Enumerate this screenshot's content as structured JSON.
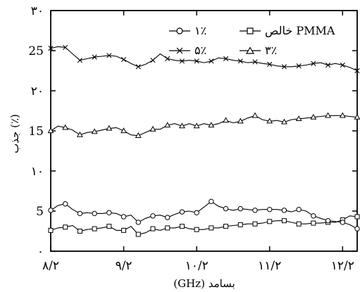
{
  "chart_data": {
    "type": "line",
    "xlabel": "بسامد (GHz)",
    "ylabel": "جذب (٪)",
    "x_ticks": [
      {
        "value": 8.2,
        "label": "۸/۲"
      },
      {
        "value": 9.2,
        "label": "۹/۲"
      },
      {
        "value": 10.2,
        "label": "۱۰/۲"
      },
      {
        "value": 11.2,
        "label": "۱۱/۲"
      },
      {
        "value": 12.2,
        "label": "۱۲/۲"
      }
    ],
    "y_ticks": [
      {
        "value": 0,
        "label": "۰"
      },
      {
        "value": 5,
        "label": "5"
      },
      {
        "value": 10,
        "label": "۱۰"
      },
      {
        "value": 15,
        "label": "15"
      },
      {
        "value": 20,
        "label": "۲۰"
      },
      {
        "value": 25,
        "label": "25"
      },
      {
        "value": 30,
        "label": "۳۰"
      }
    ],
    "xlim": [
      8.2,
      12.4
    ],
    "ylim": [
      0,
      30
    ],
    "grid": false,
    "legend_position": "top",
    "x": [
      8.2,
      8.3,
      8.4,
      8.5,
      8.6,
      8.7,
      8.8,
      8.9,
      9.0,
      9.1,
      9.2,
      9.3,
      9.4,
      9.5,
      9.6,
      9.7,
      9.8,
      9.9,
      10.0,
      10.1,
      10.2,
      10.3,
      10.4,
      10.5,
      10.6,
      10.7,
      10.8,
      10.9,
      11.0,
      11.1,
      11.2,
      11.3,
      11.4,
      11.5,
      11.6,
      11.7,
      11.8,
      11.9,
      12.0,
      12.1,
      12.2,
      12.3,
      12.4
    ],
    "series": [
      {
        "name": "خالص PMMA",
        "marker": "square",
        "values": [
          2.6,
          2.9,
          3.0,
          3.2,
          2.5,
          2.7,
          2.8,
          2.9,
          3.1,
          2.6,
          2.6,
          3.1,
          2.1,
          2.3,
          2.8,
          2.6,
          2.9,
          2.9,
          3.1,
          2.8,
          2.7,
          2.7,
          2.9,
          2.9,
          3.1,
          3.2,
          3.3,
          3.4,
          3.4,
          3.5,
          3.7,
          3.8,
          3.8,
          3.6,
          3.4,
          3.4,
          3.5,
          3.5,
          3.6,
          3.6,
          3.9,
          4.4,
          4.3
        ]
      },
      {
        "name": "۱٪",
        "marker": "circle",
        "values": [
          5.1,
          5.7,
          5.9,
          5.2,
          4.7,
          4.8,
          4.7,
          4.7,
          4.8,
          4.7,
          4.3,
          4.5,
          3.6,
          4.1,
          4.4,
          4.5,
          4.2,
          4.6,
          4.9,
          5.0,
          4.8,
          5.5,
          6.2,
          5.6,
          5.3,
          5.1,
          5.3,
          5.2,
          5.1,
          5.2,
          5.2,
          5.2,
          5.1,
          4.9,
          5.2,
          5.0,
          4.4,
          4.1,
          3.8,
          3.7,
          3.6,
          3.3,
          2.8
        ]
      },
      {
        "name": "۳٪",
        "marker": "triangle",
        "values": [
          15.0,
          15.6,
          15.4,
          15.1,
          14.5,
          14.8,
          14.9,
          15.1,
          15.3,
          15.4,
          15.0,
          14.5,
          14.4,
          14.8,
          15.2,
          15.2,
          15.7,
          15.9,
          15.6,
          15.9,
          15.6,
          15.9,
          15.7,
          15.9,
          16.3,
          16.0,
          16.2,
          16.6,
          16.9,
          16.4,
          16.2,
          16.3,
          16.1,
          16.4,
          16.5,
          16.6,
          16.7,
          16.8,
          16.9,
          16.9,
          16.9,
          16.8,
          16.7
        ]
      },
      {
        "name": "۵٪",
        "marker": "x",
        "values": [
          25.3,
          25.5,
          25.4,
          24.6,
          23.8,
          24.0,
          24.2,
          24.3,
          24.4,
          24.3,
          23.9,
          23.4,
          23.0,
          23.3,
          23.8,
          24.6,
          24.0,
          23.8,
          23.7,
          23.8,
          23.7,
          23.5,
          23.7,
          24.1,
          24.0,
          23.8,
          23.7,
          23.5,
          23.6,
          23.4,
          23.3,
          23.1,
          23.0,
          23.0,
          23.1,
          23.2,
          23.4,
          23.5,
          23.2,
          23.4,
          23.2,
          22.9,
          22.5
        ]
      }
    ]
  },
  "legend": {
    "row1": [
      "۱٪",
      "خالص PMMA"
    ],
    "row2": [
      "۵٪",
      "۳٪"
    ]
  },
  "colors": {
    "ink": "#000000",
    "background": "#ffffff"
  }
}
